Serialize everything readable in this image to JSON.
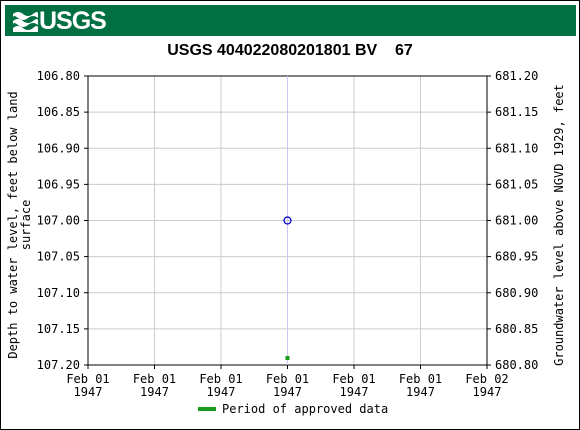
{
  "header": {
    "logo_text": "USGS",
    "logo_icon": "usgs-wave-icon",
    "banner_color": "#006f41"
  },
  "chart_data": {
    "type": "scatter",
    "title": "USGS 404022080201801 BV    67",
    "ylabel_left": "Depth to water level, feet below land surface",
    "ylabel_left_lines": [
      "Depth to water level, feet below land",
      "surface"
    ],
    "ylabel_right": "Groundwater level above NGVD 1929, feet",
    "y_left_ticks": [
      "106.80",
      "106.85",
      "106.90",
      "106.95",
      "107.00",
      "107.05",
      "107.10",
      "107.15",
      "107.20"
    ],
    "y_right_ticks": [
      "681.20",
      "681.15",
      "681.10",
      "681.05",
      "681.00",
      "680.95",
      "680.90",
      "680.85",
      "680.80"
    ],
    "ylim_left": [
      106.8,
      107.2
    ],
    "y_inverted": true,
    "x_ticks": [
      {
        "line1": "Feb 01",
        "line2": "1947"
      },
      {
        "line1": "Feb 01",
        "line2": "1947"
      },
      {
        "line1": "Feb 01",
        "line2": "1947"
      },
      {
        "line1": "Feb 01",
        "line2": "1947"
      },
      {
        "line1": "Feb 01",
        "line2": "1947"
      },
      {
        "line1": "Feb 01",
        "line2": "1947"
      },
      {
        "line1": "Feb 02",
        "line2": "1947"
      }
    ],
    "series": [
      {
        "x": "Feb 01 1947",
        "y": 107.0,
        "marker": "open-circle",
        "color": "#0000cc"
      }
    ],
    "approved_period": {
      "x": "Feb 01 1947",
      "color": "#1a9a1a"
    },
    "grid": true,
    "legend": {
      "label": "Period of approved data",
      "color": "#1a9a1a",
      "placement": "bottom-center"
    }
  }
}
